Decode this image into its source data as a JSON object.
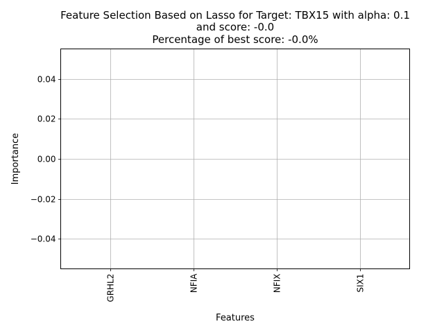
{
  "chart_data": {
    "type": "bar",
    "title": [
      "Feature Selection Based on Lasso for Target: TBX15 with alpha: 0.1",
      "and score: -0.0",
      "Percentage of best score: -0.0%"
    ],
    "xlabel": "Features",
    "ylabel": "Importance",
    "categories": [
      "GRHL2",
      "NFIA",
      "NFIX",
      "SIX1"
    ],
    "values": [
      0.0,
      0.0,
      0.0,
      0.0
    ],
    "ylim": [
      -0.055,
      0.055
    ],
    "yticks": [
      -0.04,
      -0.02,
      0.0,
      0.02,
      0.04
    ],
    "ytick_labels": [
      "−0.04",
      "−0.02",
      "0.00",
      "0.02",
      "0.04"
    ],
    "grid": true,
    "legend": false,
    "colors": {
      "grid": "#b0b0b0",
      "axis": "#000000",
      "bar": "#1f77b4"
    }
  }
}
